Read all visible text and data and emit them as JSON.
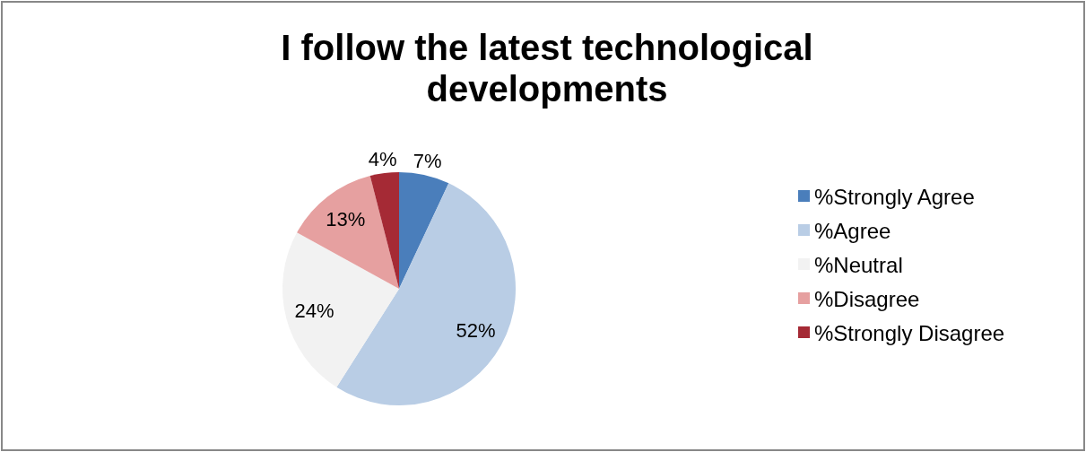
{
  "chart_data": {
    "type": "pie",
    "title": "I follow the latest technological developments",
    "categories": [
      "%Strongly Agree",
      "%Agree",
      "%Neutral",
      "%Disagree",
      "%Strongly Disagree"
    ],
    "values": [
      7,
      52,
      24,
      13,
      4
    ],
    "value_labels": [
      "7%",
      "52%",
      "24%",
      "13%",
      "4%"
    ],
    "colors": [
      "#4a7ebb",
      "#b9cde5",
      "#f2f2f2",
      "#e6a0a0",
      "#a52a35"
    ],
    "legend": "right"
  }
}
